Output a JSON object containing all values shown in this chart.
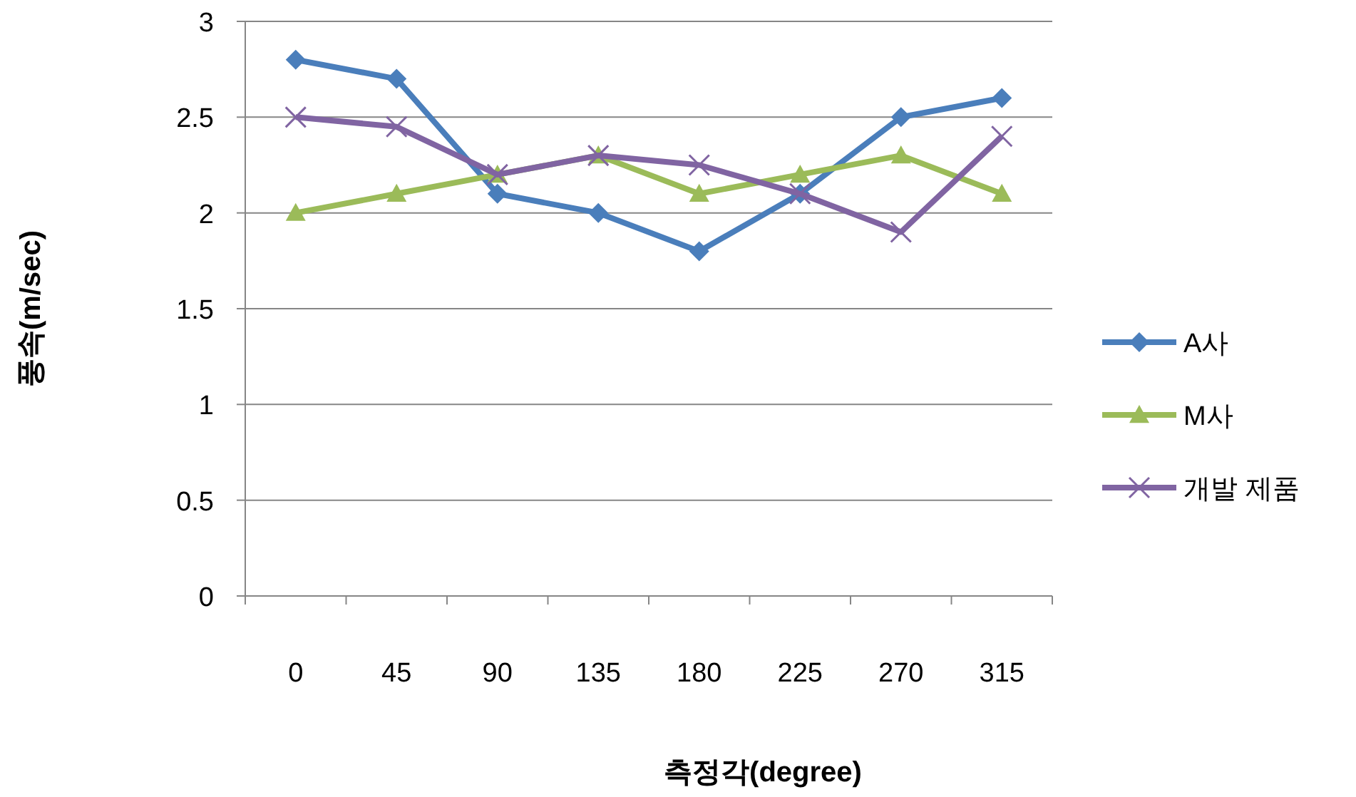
{
  "chart_data": {
    "type": "line",
    "xlabel": "측정각(degree)",
    "ylabel": "풍속(m/sec)",
    "categories": [
      "0",
      "45",
      "90",
      "135",
      "180",
      "225",
      "270",
      "315"
    ],
    "ylim": [
      0,
      3
    ],
    "yticks": [
      0,
      0.5,
      1,
      1.5,
      2,
      2.5,
      3
    ],
    "grid": "y",
    "legend": "right",
    "series": [
      {
        "name": "A사",
        "color": "#4a7ebb",
        "marker": "diamond",
        "values": [
          2.8,
          2.7,
          2.1,
          2.0,
          1.8,
          2.1,
          2.5,
          2.6
        ]
      },
      {
        "name": "M사",
        "color": "#9bbb59",
        "marker": "triangle",
        "values": [
          2.0,
          2.1,
          2.2,
          2.3,
          2.1,
          2.2,
          2.3,
          2.1
        ]
      },
      {
        "name": "개발 제품",
        "color": "#8064a2",
        "marker": "cross",
        "values": [
          2.5,
          2.45,
          2.2,
          2.3,
          2.25,
          2.1,
          1.9,
          2.4
        ]
      }
    ]
  }
}
